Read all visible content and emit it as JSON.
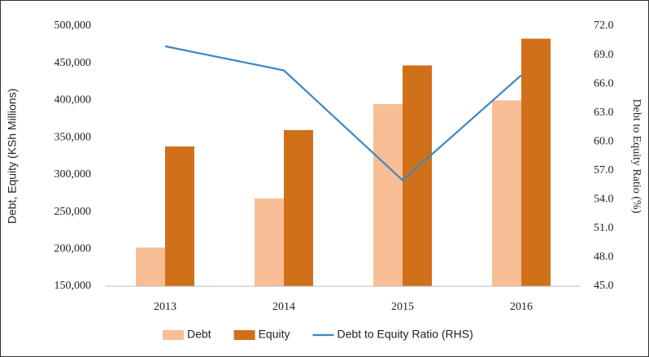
{
  "chart_data": {
    "type": "bar",
    "categories": [
      "2013",
      "2014",
      "2015",
      "2016"
    ],
    "series": [
      {
        "name": "Debt",
        "type": "bar",
        "color": "#f7be96",
        "values": [
          202000,
          268000,
          395000,
          400000
        ]
      },
      {
        "name": "Equity",
        "type": "bar",
        "color": "#d07019",
        "values": [
          338000,
          360000,
          447000,
          483000
        ]
      },
      {
        "name": "Debt to Equity Ratio (RHS)",
        "type": "line",
        "axis": "y2",
        "color": "#3d87c4",
        "values": [
          69.9,
          67.4,
          56.0,
          66.9
        ]
      }
    ],
    "ylabel": "Debt, Equity (KSh Millions)",
    "y2label": "Debt to Equity Ratio (%)",
    "ylim": [
      150000,
      500000
    ],
    "yticks": [
      {
        "value": 150000,
        "label": "150,000"
      },
      {
        "value": 200000,
        "label": "200,000"
      },
      {
        "value": 250000,
        "label": "250,000"
      },
      {
        "value": 300000,
        "label": "300,000"
      },
      {
        "value": 350000,
        "label": "350,000"
      },
      {
        "value": 400000,
        "label": "400,000"
      },
      {
        "value": 450000,
        "label": "450,000"
      },
      {
        "value": 500000,
        "label": "500,000"
      }
    ],
    "y2lim": [
      45,
      72
    ],
    "y2ticks": [
      {
        "value": 45,
        "label": "45.0"
      },
      {
        "value": 48,
        "label": "48.0"
      },
      {
        "value": 51,
        "label": "51.0"
      },
      {
        "value": 54,
        "label": "54.0"
      },
      {
        "value": 57,
        "label": "57.0"
      },
      {
        "value": 60,
        "label": "60.0"
      },
      {
        "value": 63,
        "label": "63.0"
      },
      {
        "value": 66,
        "label": "66.0"
      },
      {
        "value": 69,
        "label": "69.0"
      },
      {
        "value": 72,
        "label": "72.0"
      }
    ],
    "grid": false,
    "legend": "bottom"
  }
}
